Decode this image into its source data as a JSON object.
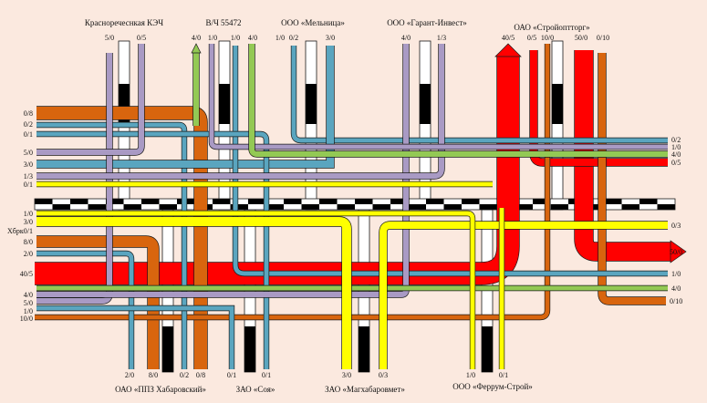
{
  "colors": {
    "background": "#fbe9df",
    "purple": "#a99ac4",
    "blue": "#5aa5bf",
    "orange": "#d8650e",
    "red": "#ff0000",
    "yellow": "#ffff00",
    "green": "#93c954",
    "outline": "#1a1a1a"
  },
  "organizations": {
    "krasnorechenskaya": "Красноречеснкая КЭЧ",
    "vch": "В/Ч 55472",
    "melnitsa": "ООО «Мельница»",
    "garant": "ООО «Гарант-Инвест»",
    "stroyopttorg": "ОАО «Стройоптторг»",
    "ppz": "ОАО «ППЗ Хабаровский»",
    "soya": "ЗАО «Соя»",
    "magkhabarovmet": "ЗАО «Магхабаровмет»",
    "ferrum": "ООО «Феррум-Строй»"
  },
  "labels": {
    "k_out": "5/0",
    "k_in": "0/5",
    "v_a": "4/0",
    "v_b": "1/0",
    "v_c": "1/0",
    "v_d": "4/0",
    "m_a": "1/0",
    "m_b": "0/2",
    "m_c": "3/0",
    "g_a": "4/0",
    "g_b": "1/3",
    "s_a": "40/5",
    "s_b": "0/5",
    "s_c": "10/0",
    "s_d": "50/0",
    "s_e": "0/10",
    "l_08": "0/8",
    "l_02": "0/2",
    "l_01": "0/1",
    "l_50": "5/0",
    "l_30": "3/0",
    "l_13": "1/3",
    "l_01b": "0/1",
    "l_10": "1/0",
    "l_30b": "3/0",
    "l_khab": "Хбрк0/1",
    "l_80": "8/0",
    "l_20": "2/0",
    "l_405": "40/5",
    "l_40": "4/0",
    "l_50b": "5/0",
    "l_10b": "1/0",
    "l_100": "10/0",
    "r_02": "0/2",
    "r_10": "1/0",
    "r_40": "4/0",
    "r_05": "0/5",
    "r_03": "0/3",
    "r_500": "50/0",
    "r_10b": "1/0",
    "r_40b": "4/0",
    "r_010": "0/10",
    "b_20": "2/0",
    "b_80": "8/0",
    "b_02": "0/2",
    "b_08": "0/8",
    "b_10": "0/1",
    "b_01": "0/1",
    "b_30": "3/0",
    "b_03": "0/3",
    "b_fa": "1/0",
    "b_fb": "0/1"
  }
}
